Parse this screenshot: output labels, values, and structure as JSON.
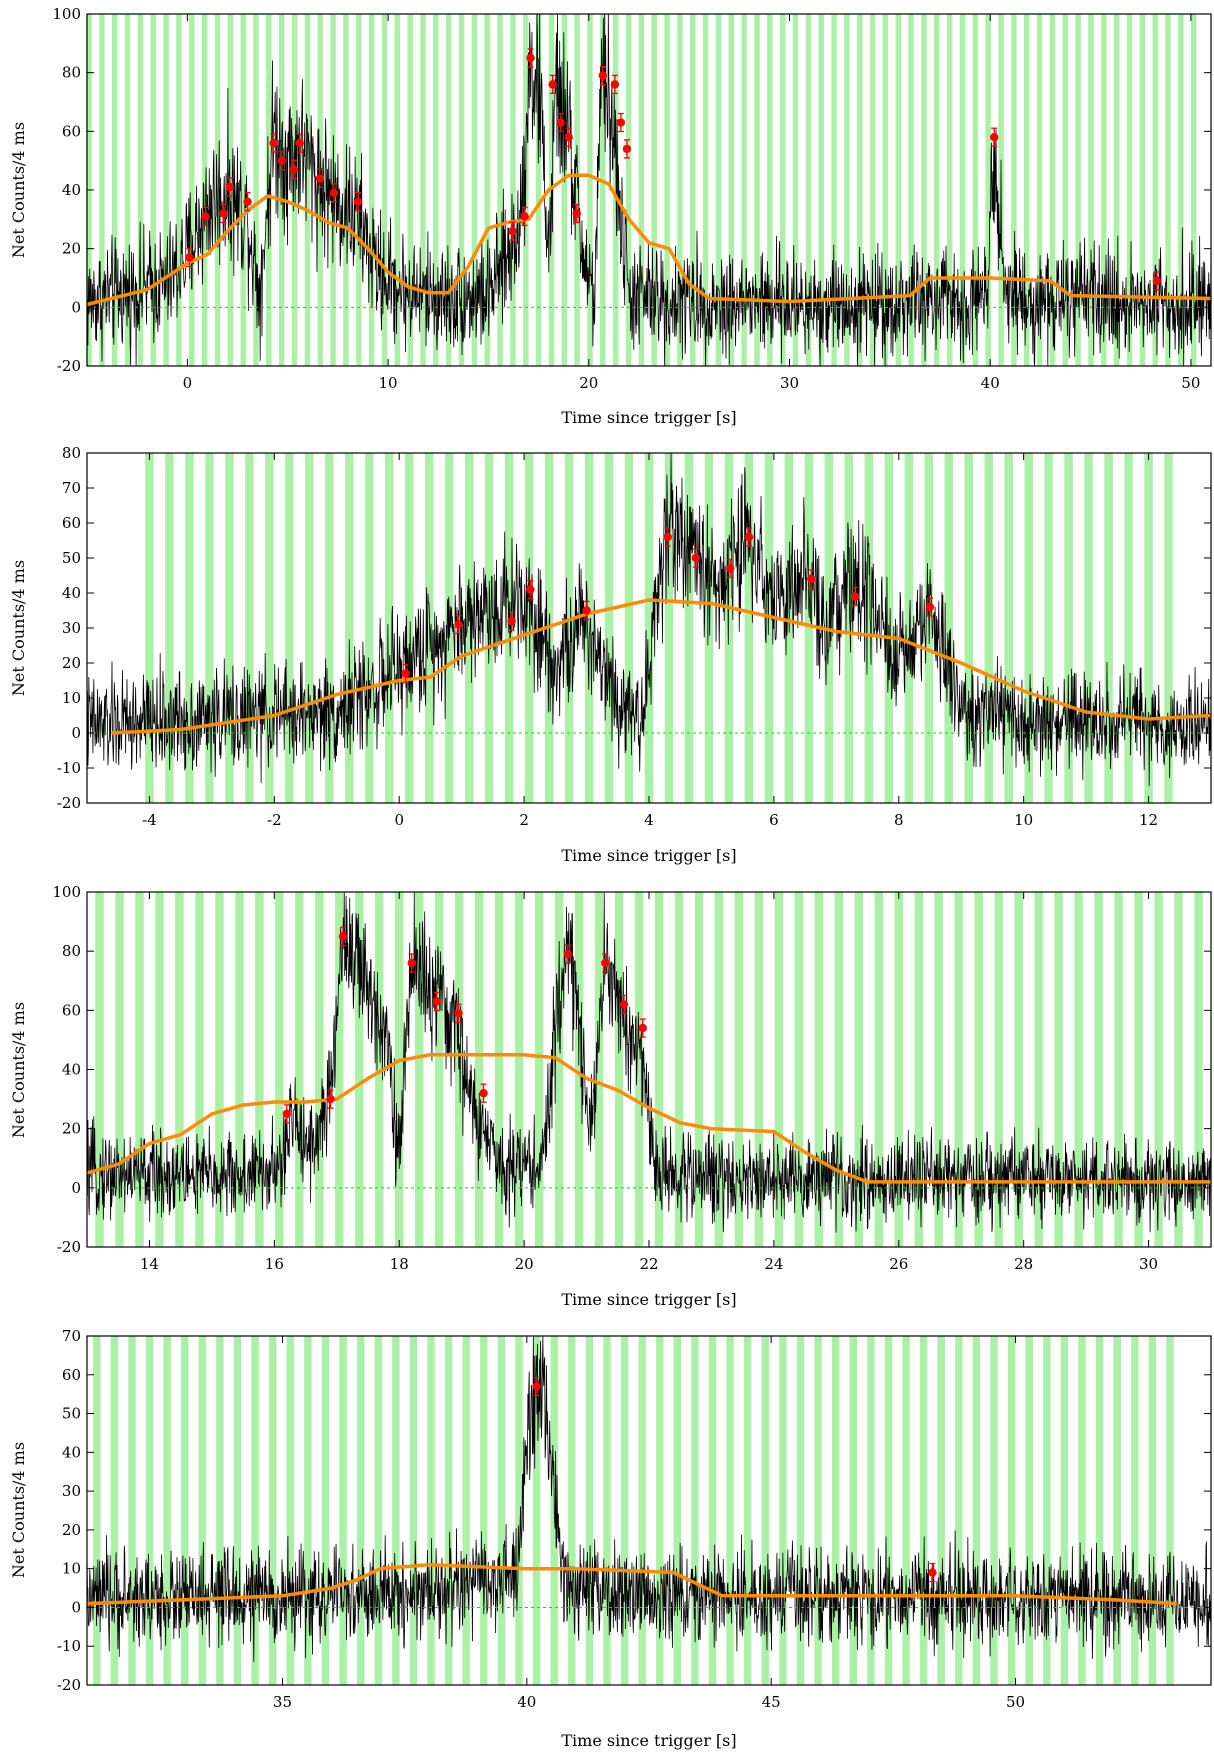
{
  "chart_data": [
    {
      "type": "line",
      "title": "",
      "xlabel": "Time since trigger [s]",
      "ylabel": "Net Counts/4 ms",
      "xlim": [
        -5,
        51
      ],
      "ylim": [
        -20,
        100
      ],
      "xticks": [
        0,
        10,
        20,
        30,
        40,
        50
      ],
      "yticks": [
        -20,
        0,
        20,
        40,
        60,
        80,
        100
      ],
      "band_spacing": 0.64,
      "bands_from": -4.9,
      "bands_to": 50.6,
      "noise": 9,
      "signal": [
        [
          -5,
          2
        ],
        [
          -1,
          8
        ],
        [
          0,
          18
        ],
        [
          1,
          34
        ],
        [
          2,
          40
        ],
        [
          3,
          30
        ],
        [
          3.6,
          5
        ],
        [
          4.3,
          60
        ],
        [
          5,
          50
        ],
        [
          5.6,
          55
        ],
        [
          6.5,
          44
        ],
        [
          7.5,
          36
        ],
        [
          8.5,
          30
        ],
        [
          9.5,
          12
        ],
        [
          11,
          5
        ],
        [
          13,
          3
        ],
        [
          15,
          4
        ],
        [
          16,
          18
        ],
        [
          16.6,
          30
        ],
        [
          17.1,
          85
        ],
        [
          17.6,
          70
        ],
        [
          18,
          18
        ],
        [
          18.4,
          75
        ],
        [
          19,
          58
        ],
        [
          19.5,
          30
        ],
        [
          20,
          8
        ],
        [
          20.3,
          5
        ],
        [
          20.7,
          85
        ],
        [
          21.2,
          60
        ],
        [
          21.6,
          30
        ],
        [
          22,
          4
        ],
        [
          24,
          2
        ],
        [
          30,
          1
        ],
        [
          39,
          2
        ],
        [
          39.8,
          6
        ],
        [
          40.2,
          58
        ],
        [
          40.7,
          8
        ],
        [
          41.5,
          2
        ],
        [
          51,
          2
        ]
      ],
      "series": [
        {
          "name": "",
          "role": "smoothed-envelope",
          "color": "#ff8c00",
          "x": [
            -5,
            -2,
            0,
            1,
            2,
            3,
            4,
            5,
            6,
            7,
            8,
            9,
            10,
            11,
            12,
            13,
            14,
            15,
            16,
            17,
            18,
            19,
            20,
            21,
            22,
            23,
            24,
            25,
            26,
            30,
            36,
            37,
            40,
            43,
            44,
            51
          ],
          "y": [
            1,
            6,
            15,
            18,
            26,
            33,
            38,
            36,
            33,
            29,
            27,
            20,
            12,
            7,
            5,
            5,
            14,
            27,
            29,
            30,
            40,
            45,
            45,
            42,
            30,
            22,
            20,
            8,
            3,
            2,
            4,
            10,
            10,
            9,
            4,
            3
          ]
        },
        {
          "name": "",
          "role": "binned-points",
          "color": "#ff0000",
          "x": [
            0.1,
            0.9,
            1.8,
            2.1,
            3,
            4.3,
            4.7,
            5.3,
            5.6,
            6.6,
            7.3,
            8.5,
            16.2,
            16.8,
            17.1,
            18.2,
            18.6,
            19,
            19.4,
            20.7,
            21.3,
            21.6,
            21.9,
            40.2,
            48.3
          ],
          "y": [
            17,
            31,
            32,
            41,
            36,
            56,
            50,
            47,
            56,
            44,
            39,
            36,
            26,
            31,
            85,
            76,
            63,
            58,
            32,
            79,
            76,
            63,
            54,
            58,
            9
          ]
        }
      ]
    },
    {
      "type": "line",
      "title": "",
      "xlabel": "Time since trigger [s]",
      "ylabel": "Net Counts/4 ms",
      "xlim": [
        -5,
        13
      ],
      "ylim": [
        -20,
        80
      ],
      "xticks": [
        -4,
        -2,
        0,
        2,
        4,
        6,
        8,
        10,
        12
      ],
      "yticks": [
        -20,
        -10,
        0,
        10,
        20,
        30,
        40,
        50,
        60,
        70,
        80
      ],
      "band_spacing": 0.32,
      "bands_from": -4,
      "bands_to": 12.5,
      "noise": 7,
      "signal": [
        [
          -5,
          2
        ],
        [
          -1,
          6
        ],
        [
          0,
          18
        ],
        [
          1,
          32
        ],
        [
          2,
          40
        ],
        [
          2.5,
          20
        ],
        [
          3,
          32
        ],
        [
          3.5,
          10
        ],
        [
          3.9,
          5
        ],
        [
          4.3,
          62
        ],
        [
          4.8,
          48
        ],
        [
          5.2,
          42
        ],
        [
          5.6,
          58
        ],
        [
          6,
          38
        ],
        [
          6.5,
          42
        ],
        [
          6.9,
          30
        ],
        [
          7.3,
          45
        ],
        [
          7.7,
          28
        ],
        [
          8,
          20
        ],
        [
          8.5,
          36
        ],
        [
          9,
          6
        ],
        [
          10,
          3
        ],
        [
          13,
          2
        ]
      ],
      "series": [
        {
          "name": "",
          "role": "smoothed-envelope",
          "color": "#ff8c00",
          "x": [
            -4.6,
            -3.5,
            -2,
            -1,
            0,
            0.5,
            1,
            2,
            3,
            4,
            5,
            6,
            7,
            8,
            9,
            10,
            11,
            12,
            13
          ],
          "y": [
            0,
            1,
            5,
            11,
            15,
            16,
            22,
            28,
            34,
            38,
            37,
            33,
            29,
            27,
            20,
            12,
            6,
            4,
            5
          ]
        },
        {
          "name": "",
          "role": "binned-points",
          "color": "#ff0000",
          "x": [
            0.1,
            0.95,
            1.8,
            2.1,
            3,
            4.3,
            4.75,
            5.3,
            5.6,
            6.6,
            7.3,
            8.5
          ],
          "y": [
            17,
            31,
            32,
            41,
            35,
            56,
            50,
            47,
            56,
            44,
            39,
            36
          ]
        }
      ]
    },
    {
      "type": "line",
      "title": "",
      "xlabel": "Time since trigger [s]",
      "ylabel": "Net Counts/4 ms",
      "xlim": [
        13,
        31
      ],
      "ylim": [
        -20,
        100
      ],
      "xticks": [
        14,
        16,
        18,
        20,
        22,
        24,
        26,
        28,
        30
      ],
      "yticks": [
        -20,
        0,
        20,
        40,
        60,
        80,
        100
      ],
      "band_spacing": 0.32,
      "bands_from": 13.2,
      "bands_to": 30.8,
      "noise": 7,
      "signal": [
        [
          13,
          5
        ],
        [
          15.5,
          4
        ],
        [
          16.1,
          6
        ],
        [
          16.3,
          24
        ],
        [
          16.6,
          14
        ],
        [
          16.9,
          30
        ],
        [
          17.1,
          88
        ],
        [
          17.5,
          65
        ],
        [
          17.8,
          55
        ],
        [
          18,
          8
        ],
        [
          18.2,
          80
        ],
        [
          18.6,
          62
        ],
        [
          18.9,
          55
        ],
        [
          19.2,
          25
        ],
        [
          19.6,
          8
        ],
        [
          20.3,
          8
        ],
        [
          20.5,
          50
        ],
        [
          20.7,
          88
        ],
        [
          20.9,
          50
        ],
        [
          21.1,
          20
        ],
        [
          21.3,
          80
        ],
        [
          21.6,
          55
        ],
        [
          21.9,
          45
        ],
        [
          22.1,
          5
        ],
        [
          24,
          3
        ],
        [
          31,
          2
        ]
      ],
      "series": [
        {
          "name": "",
          "role": "smoothed-envelope",
          "color": "#ff8c00",
          "x": [
            13,
            13.5,
            14,
            14.5,
            15,
            15.5,
            16,
            16.5,
            17,
            17.5,
            18,
            18.5,
            19,
            19.5,
            20,
            20.5,
            21,
            21.5,
            22,
            22.5,
            23,
            24,
            24.5,
            25,
            25.5,
            26,
            31
          ],
          "y": [
            5,
            8,
            15,
            18,
            25,
            28,
            29,
            29,
            30,
            37,
            43,
            45,
            45,
            45,
            45,
            44,
            37,
            33,
            27,
            22,
            20,
            19,
            12,
            6,
            2,
            2,
            2
          ]
        },
        {
          "name": "",
          "role": "binned-points",
          "color": "#ff0000",
          "x": [
            16.2,
            16.9,
            17.1,
            18.2,
            18.6,
            18.95,
            19.35,
            20.7,
            21.3,
            21.6,
            21.9
          ],
          "y": [
            25,
            30,
            85,
            76,
            63,
            59,
            32,
            79,
            76,
            62,
            54
          ]
        }
      ]
    },
    {
      "type": "line",
      "title": "",
      "xlabel": "Time since trigger [s]",
      "ylabel": "Net Counts/4 ms",
      "xlim": [
        31,
        54
      ],
      "ylim": [
        -20,
        70
      ],
      "xticks": [
        35,
        40,
        45,
        50
      ],
      "yticks": [
        -20,
        -10,
        0,
        10,
        20,
        30,
        40,
        50,
        60,
        70
      ],
      "band_spacing": 0.36,
      "bands_from": 31.2,
      "bands_to": 53.2,
      "noise": 6,
      "signal": [
        [
          31,
          2
        ],
        [
          37,
          3
        ],
        [
          39,
          6
        ],
        [
          39.8,
          8
        ],
        [
          40.1,
          55
        ],
        [
          40.3,
          60
        ],
        [
          40.7,
          10
        ],
        [
          41.2,
          3
        ],
        [
          54,
          2
        ]
      ],
      "series": [
        {
          "name": "",
          "role": "smoothed-envelope",
          "color": "#ff8c00",
          "x": [
            31,
            33,
            35,
            36,
            36.5,
            37,
            38,
            40,
            41,
            43,
            43.5,
            44,
            46,
            48,
            50,
            52,
            53.3
          ],
          "y": [
            1,
            2,
            3,
            5,
            7,
            10,
            11,
            10,
            10,
            9,
            6,
            3,
            3,
            3,
            3,
            2,
            1
          ]
        },
        {
          "name": "",
          "role": "binned-points",
          "color": "#ff0000",
          "x": [
            40.2,
            48.3
          ],
          "y": [
            57,
            9
          ]
        }
      ]
    }
  ]
}
